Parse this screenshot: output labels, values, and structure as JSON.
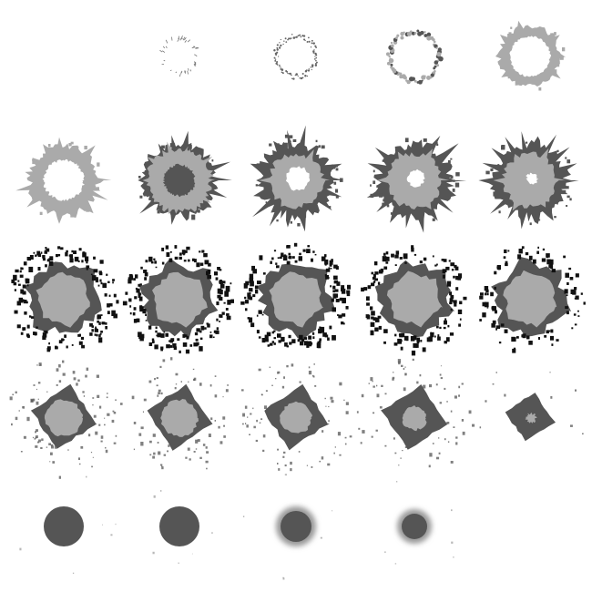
{
  "figure": {
    "background": "#ffffff",
    "colors": {
      "light_gray": "#aaaaaa",
      "dark_gray": "#555555",
      "black": "#111111",
      "hole": "#ffffff"
    },
    "grid": {
      "rows": 5,
      "cols": 5
    },
    "frames": [
      {
        "stage": "empty"
      },
      {
        "stage": "faint-ring"
      },
      {
        "stage": "dotted-ring"
      },
      {
        "stage": "beaded-ring"
      },
      {
        "stage": "thick-light-ring"
      },
      {
        "stage": "light-ring-large-hole"
      },
      {
        "stage": "light-ring-dark-fringe"
      },
      {
        "stage": "dark-outer-light-inner"
      },
      {
        "stage": "dark-outer-light-inner-small-hole"
      },
      {
        "stage": "dark-outer-light-inner-tiny-hole"
      },
      {
        "stage": "hexagon-dark-border-dense-debris"
      },
      {
        "stage": "hexagon-dark-border-dense-debris"
      },
      {
        "stage": "hexagon-dark-border-dense-debris"
      },
      {
        "stage": "hexagon-dark-border-debris"
      },
      {
        "stage": "hexagon-dark-border-sparse-debris"
      },
      {
        "stage": "square-dark-border-scattered-debris"
      },
      {
        "stage": "square-dark-border-faint-debris"
      },
      {
        "stage": "square-light-core-faint-debris"
      },
      {
        "stage": "square-shrinking-light-core"
      },
      {
        "stage": "small-dark-square-tiny-core"
      },
      {
        "stage": "dark-disc"
      },
      {
        "stage": "dark-disc"
      },
      {
        "stage": "dark-disc-light-halo"
      },
      {
        "stage": "small-dark-disc-halo"
      },
      {
        "stage": "empty"
      }
    ]
  }
}
